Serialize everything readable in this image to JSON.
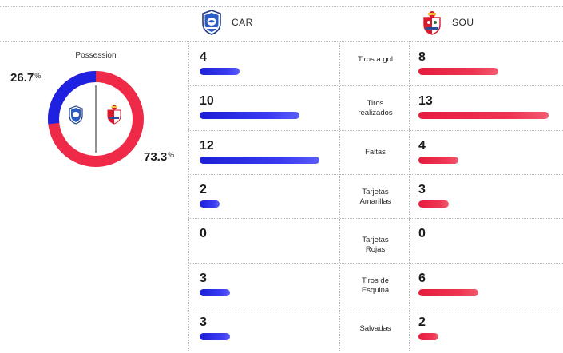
{
  "teams": {
    "home": {
      "code": "CAR",
      "color": "#1e22e0",
      "crest": "cardiff-city-crest"
    },
    "away": {
      "code": "SOU",
      "color": "#ee2a48",
      "crest": "southampton-crest"
    }
  },
  "possession": {
    "title": "Possession",
    "home": {
      "value": 26.7,
      "label": "26.7",
      "unit": "%"
    },
    "away": {
      "value": 73.3,
      "label": "73.3",
      "unit": "%"
    }
  },
  "stats": [
    {
      "label": "Tiros a gol",
      "home": "4",
      "away": "8",
      "home_value": 4,
      "away_value": 8
    },
    {
      "label": "Tiros realizados",
      "home": "10",
      "away": "13",
      "home_value": 10,
      "away_value": 13
    },
    {
      "label": "Faltas",
      "home": "12",
      "away": "4",
      "home_value": 12,
      "away_value": 4
    },
    {
      "label": "Tarjetas Amarillas",
      "home": "2",
      "away": "3",
      "home_value": 2,
      "away_value": 3
    },
    {
      "label": "Tarjetas Rojas",
      "home": "0",
      "away": "0",
      "home_value": 0,
      "away_value": 0
    },
    {
      "label": "Tiros de Esquina",
      "home": "3",
      "away": "6",
      "home_value": 3,
      "away_value": 6
    },
    {
      "label": "Salvadas",
      "home": "3",
      "away": "2",
      "home_value": 3,
      "away_value": 2
    }
  ]
}
